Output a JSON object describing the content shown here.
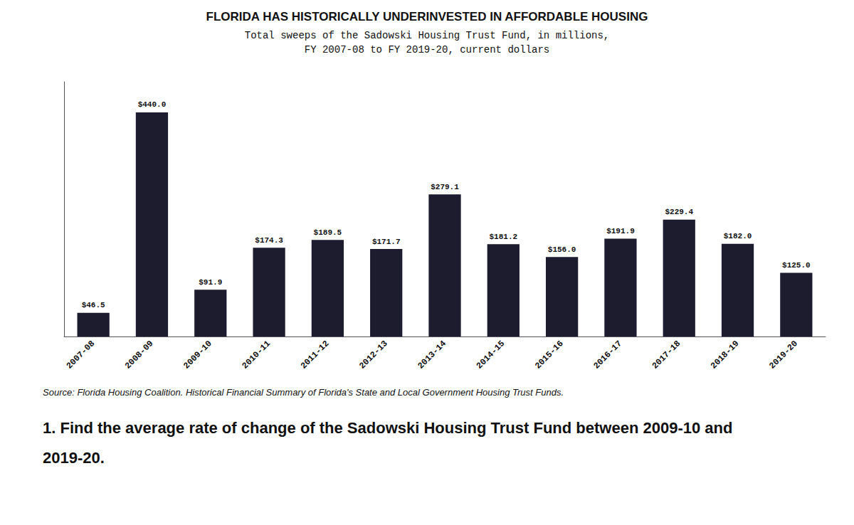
{
  "chart_data": {
    "type": "bar",
    "title": "FLORIDA HAS HISTORICALLY UNDERINVESTED IN AFFORDABLE HOUSING",
    "subtitle": [
      "Total sweeps of the Sadowski Housing Trust Fund, in millions,",
      "FY 2007-08 to FY 2019-20, current dollars"
    ],
    "categories": [
      "2007-08",
      "2008-09",
      "2009-10",
      "2010-11",
      "2011-12",
      "2012-13",
      "2013-14",
      "2014-15",
      "2015-16",
      "2016-17",
      "2017-18",
      "2018-19",
      "2019-20"
    ],
    "values": [
      46.5,
      440.0,
      91.9,
      174.3,
      189.5,
      171.7,
      279.1,
      181.2,
      156.0,
      191.9,
      229.4,
      182.0,
      125.0
    ],
    "value_labels": [
      "$46.5",
      "$440.0",
      "$91.9",
      "$174.3",
      "$189.5",
      "$171.7",
      "$279.1",
      "$181.2",
      "$156.0",
      "$191.9",
      "$229.4",
      "$182.0",
      "$125.0"
    ],
    "data_labels": true,
    "color": "#1c1c2e",
    "ylim": [
      0,
      500
    ],
    "tick_labels": "x",
    "grid": false,
    "annotations": [
      "Source: Florida Housing Coalition. Historical Financial Summary of Florida's State and Local Government Housing Trust Funds.",
      "1. Find the average rate of change of the Sadowski Housing Trust Fund between 2009-10 and",
      "2019-20."
    ]
  }
}
